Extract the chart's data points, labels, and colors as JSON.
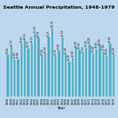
{
  "title": "Seattle Annual Precipitation, 1948-1979",
  "xlabel": "Year",
  "years": [
    1948,
    1949,
    1950,
    1951,
    1952,
    1953,
    1954,
    1955,
    1956,
    1957,
    1958,
    1959,
    1960,
    1961,
    1962,
    1963,
    1964,
    1965,
    1966,
    1967,
    1968,
    1969,
    1970,
    1971,
    1972,
    1973,
    1974,
    1975,
    1976,
    1977,
    1978,
    1979
  ],
  "rainfall_data": [
    34.62,
    41.37,
    30.83,
    30.68,
    43.63,
    46.52,
    39.79,
    43.53,
    51.79,
    48.34,
    33.56,
    35.58,
    48.25,
    56.35,
    33.33,
    37.83,
    48.5,
    35.0,
    28.78,
    32.0,
    40.0,
    38.5,
    35.5,
    40.2,
    43.0,
    36.0,
    39.0,
    42.0,
    37.0,
    34.0,
    43.5,
    35.0
  ],
  "bar_color": "#4BACC6",
  "bg_color": "#BDD7EE",
  "title_bg": "#9DC3E6",
  "ylim": [
    0,
    65
  ],
  "title_fontsize": 4.5,
  "label_fontsize": 2.2,
  "tick_fontsize": 2.5,
  "xlabel_fontsize": 3.5
}
